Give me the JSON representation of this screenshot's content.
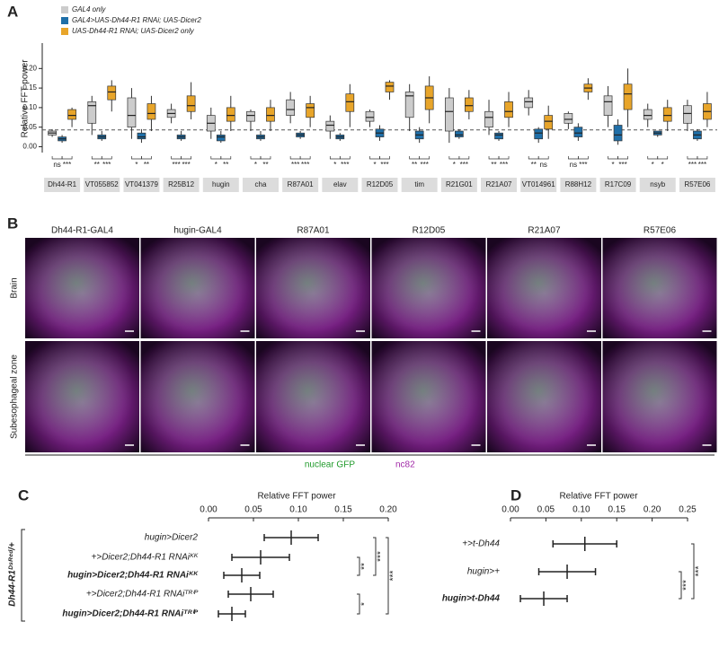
{
  "chart_data": [
    {
      "type": "box",
      "panel": "A",
      "ylabel": "Relative FFT power",
      "categories": [
        "Dh44-R1",
        "VT055852",
        "VT041379",
        "R25B12",
        "hugin",
        "cha",
        "R87A01",
        "elav",
        "R12D05",
        "tim",
        "R21G01",
        "R21A07",
        "VT014961",
        "R88H12",
        "R17C09",
        "nsyb",
        "R57E06"
      ],
      "series": [
        {
          "name": "GAL4 only",
          "color": "#cccccc",
          "median": [
            0.035,
            0.105,
            0.08,
            0.085,
            0.06,
            0.08,
            0.095,
            0.055,
            0.075,
            0.13,
            0.09,
            0.075,
            0.115,
            0.07,
            0.115,
            0.08,
            0.085
          ],
          "q1": [
            0.03,
            0.06,
            0.05,
            0.075,
            0.04,
            0.065,
            0.08,
            0.04,
            0.065,
            0.075,
            0.04,
            0.05,
            0.1,
            0.06,
            0.08,
            0.07,
            0.06
          ],
          "q3": [
            0.04,
            0.115,
            0.125,
            0.095,
            0.08,
            0.09,
            0.12,
            0.065,
            0.09,
            0.14,
            0.125,
            0.09,
            0.125,
            0.085,
            0.13,
            0.095,
            0.105
          ],
          "min": [
            0.025,
            0.03,
            0.02,
            0.06,
            0.02,
            0.04,
            0.06,
            0.02,
            0.05,
            0.04,
            0.01,
            0.03,
            0.08,
            0.045,
            0.05,
            0.05,
            0.04
          ],
          "max": [
            0.045,
            0.13,
            0.15,
            0.11,
            0.1,
            0.095,
            0.14,
            0.08,
            0.095,
            0.16,
            0.15,
            0.12,
            0.145,
            0.09,
            0.155,
            0.11,
            0.12
          ]
        },
        {
          "name": "GAL4>UAS-Dh44-R1 RNAi; UAS-Dicer2",
          "color": "#1f6fa8",
          "median": [
            0.02,
            0.025,
            0.025,
            0.025,
            0.025,
            0.025,
            0.03,
            0.025,
            0.035,
            0.03,
            0.03,
            0.03,
            0.035,
            0.035,
            0.03,
            0.035,
            0.03
          ],
          "q1": [
            0.015,
            0.02,
            0.02,
            0.02,
            0.015,
            0.02,
            0.025,
            0.02,
            0.025,
            0.02,
            0.025,
            0.02,
            0.02,
            0.025,
            0.015,
            0.03,
            0.02
          ],
          "q3": [
            0.025,
            0.03,
            0.035,
            0.03,
            0.03,
            0.03,
            0.035,
            0.03,
            0.045,
            0.04,
            0.04,
            0.035,
            0.045,
            0.05,
            0.055,
            0.04,
            0.04
          ],
          "min": [
            0.01,
            0.015,
            0.01,
            0.015,
            0.01,
            0.015,
            0.02,
            0.015,
            0.015,
            0.01,
            0.02,
            0.015,
            0.01,
            0.015,
            0.005,
            0.025,
            0.015
          ],
          "max": [
            0.03,
            0.04,
            0.045,
            0.04,
            0.04,
            0.04,
            0.04,
            0.035,
            0.055,
            0.05,
            0.045,
            0.04,
            0.05,
            0.06,
            0.07,
            0.04,
            0.045
          ]
        },
        {
          "name": "UAS-Dh44-R1 RNAi; UAS-Dicer2 only",
          "color": "#e8a52a",
          "median": [
            0.08,
            0.14,
            0.085,
            0.105,
            0.08,
            0.08,
            0.1,
            0.115,
            0.155,
            0.125,
            0.105,
            0.09,
            0.065,
            0.15,
            0.135,
            0.08,
            0.09
          ],
          "q1": [
            0.07,
            0.12,
            0.07,
            0.09,
            0.065,
            0.065,
            0.075,
            0.09,
            0.14,
            0.095,
            0.09,
            0.075,
            0.045,
            0.14,
            0.095,
            0.065,
            0.07
          ],
          "q3": [
            0.095,
            0.155,
            0.11,
            0.13,
            0.1,
            0.1,
            0.11,
            0.135,
            0.165,
            0.155,
            0.125,
            0.115,
            0.08,
            0.16,
            0.16,
            0.1,
            0.11
          ],
          "min": [
            0.05,
            0.09,
            0.04,
            0.07,
            0.04,
            0.04,
            0.05,
            0.05,
            0.12,
            0.06,
            0.07,
            0.05,
            0.02,
            0.12,
            0.05,
            0.04,
            0.05
          ],
          "max": [
            0.1,
            0.17,
            0.13,
            0.165,
            0.13,
            0.12,
            0.13,
            0.16,
            0.17,
            0.18,
            0.145,
            0.14,
            0.105,
            0.175,
            0.2,
            0.12,
            0.14
          ]
        }
      ],
      "significance": [
        [
          "ns",
          "***"
        ],
        [
          "**",
          "***"
        ],
        [
          "*",
          "**"
        ],
        [
          "***",
          "***"
        ],
        [
          "*",
          "**"
        ],
        [
          "*",
          "**"
        ],
        [
          "***",
          "***"
        ],
        [
          "*",
          "***"
        ],
        [
          "*",
          "***"
        ],
        [
          "**",
          "***"
        ],
        [
          "*",
          "***"
        ],
        [
          "**",
          "***"
        ],
        [
          "**",
          "ns"
        ],
        [
          "ns",
          "***"
        ],
        [
          "*",
          "***"
        ],
        [
          "*",
          "*"
        ],
        [
          "***",
          "***"
        ]
      ],
      "reference_line": 0.043,
      "ylim": [
        -0.015,
        0.265
      ],
      "yticks": [
        {
          "value": 0,
          "label": "0.00"
        },
        {
          "value": 0.05,
          "label": "0.05"
        },
        {
          "value": 0.1,
          "label": "0.10"
        },
        {
          "value": 0.15,
          "label": "0.15"
        },
        {
          "value": 0.2,
          "label": "0.20"
        }
      ]
    },
    {
      "type": "dot",
      "panel": "C",
      "title": "Relative FFT power",
      "group_label": "Dh44-R1ᴰˢᴿᵉᵈ/+",
      "categories": [
        "hugin>Dicer2",
        "+>Dicer2;Dh44-R1 RNAiᴷᴷ",
        "hugin>Dicer2;Dh44-R1 RNAiᴷᴷ",
        "+>Dicer2;Dh44-R1 RNAiᵀᴿⁱᴾ",
        "hugin>Dicer2;Dh44-R1 RNAiᵀᴿⁱᴾ"
      ],
      "values": [
        0.092,
        0.058,
        0.037,
        0.047,
        0.026
      ],
      "errors": [
        0.03,
        0.032,
        0.02,
        0.025,
        0.015
      ],
      "color": "#222222",
      "xlim": [
        0,
        0.2
      ],
      "xticks": [
        {
          "value": 0,
          "label": "0.00"
        },
        {
          "value": 0.05,
          "label": "0.05"
        },
        {
          "value": 0.1,
          "label": "0.10"
        },
        {
          "value": 0.15,
          "label": "0.15"
        },
        {
          "value": 0.2,
          "label": "0.20"
        }
      ],
      "significance": [
        "***",
        "**",
        "***",
        "*"
      ]
    },
    {
      "type": "dot",
      "panel": "D",
      "title": "Relative FFT power",
      "categories": [
        "+>t-Dh44",
        "hugin>+",
        "hugin>t-Dh44"
      ],
      "values": [
        0.105,
        0.08,
        0.047
      ],
      "errors": [
        0.045,
        0.04,
        0.033
      ],
      "color": "#222222",
      "xlim": [
        0,
        0.25
      ],
      "xticks": [
        {
          "value": 0,
          "label": "0.00"
        },
        {
          "value": 0.05,
          "label": "0.05"
        },
        {
          "value": 0.1,
          "label": "0.10"
        },
        {
          "value": 0.15,
          "label": "0.15"
        },
        {
          "value": 0.2,
          "label": "0.20"
        },
        {
          "value": 0.25,
          "label": "0.25"
        }
      ],
      "significance": [
        "***",
        "***"
      ]
    }
  ],
  "panel_b": {
    "panel": "B",
    "columns": [
      "Dh44-R1-GAL4",
      "hugin-GAL4",
      "R87A01",
      "R12D05",
      "R21A07",
      "R57E06"
    ],
    "rows": [
      "Brain",
      "Subesophageal zone"
    ],
    "legend": [
      {
        "name": "nuclear GFP",
        "color": "#1f9a2a"
      },
      {
        "name": "nc82",
        "color": "#a22aa8"
      }
    ]
  }
}
